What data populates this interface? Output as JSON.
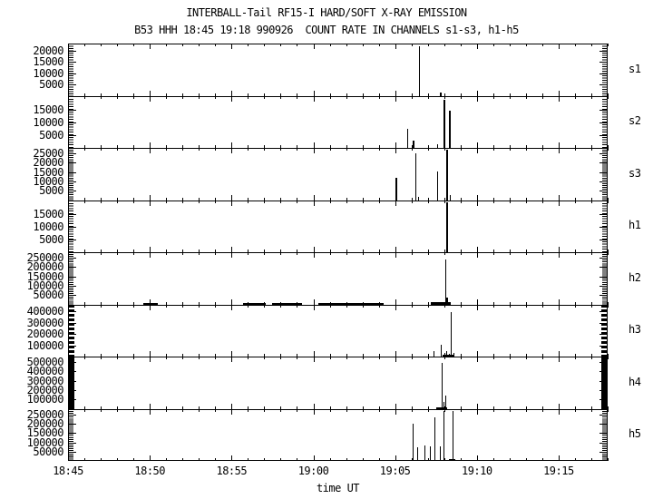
{
  "chart_data": {
    "type": "line",
    "subtype": "multi-panel-count-rate-spikes",
    "title": "INTERBALL-Tail RF15-I HARD/SOFT X-RAY EMISSION",
    "subtitle": "B53 HHH 18:45 19:18 990926  COUNT RATE IN CHANNELS s1-s3, h1-h5",
    "xlabel": "time UT",
    "grid": "off",
    "x_axis": {
      "unit": "minutes after 18:45 UT",
      "range": [
        0,
        33
      ],
      "start_label": "18:45",
      "end_label": "19:18",
      "minor_tick_every": 1,
      "major_ticks": [
        {
          "t": 0,
          "label": "18:45"
        },
        {
          "t": 5,
          "label": "18:50"
        },
        {
          "t": 10,
          "label": "18:55"
        },
        {
          "t": 15,
          "label": "19:00"
        },
        {
          "t": 20,
          "label": "19:05"
        },
        {
          "t": 25,
          "label": "19:10"
        },
        {
          "t": 30,
          "label": "19:15"
        }
      ]
    },
    "panels": [
      {
        "id": "s1",
        "label": "s1",
        "ymax": 23000,
        "y_minor_step": 1000,
        "yticks": [
          5000,
          10000,
          15000,
          20000
        ],
        "spikes": [
          {
            "t": 21.46,
            "v": 22000,
            "w": 1
          },
          {
            "t": 22.8,
            "v": 1300,
            "w": 2
          }
        ],
        "baseline_segments": []
      },
      {
        "id": "s2",
        "label": "s2",
        "ymax": 20500,
        "y_minor_step": 1000,
        "yticks": [
          5000,
          10000,
          15000
        ],
        "spikes": [
          {
            "t": 20.76,
            "v": 7400,
            "w": 1
          },
          {
            "t": 21.11,
            "v": 3000,
            "w": 2
          },
          {
            "t": 22.55,
            "v": 1500,
            "w": 1
          },
          {
            "t": 23.0,
            "v": 19000,
            "w": 2
          },
          {
            "t": 23.35,
            "v": 14600,
            "w": 2
          }
        ],
        "baseline_segments": []
      },
      {
        "id": "s3",
        "label": "s3",
        "ymax": 28000,
        "y_minor_step": 1000,
        "yticks": [
          5000,
          10000,
          15000,
          20000,
          25000
        ],
        "spikes": [
          {
            "t": 20.08,
            "v": 11800,
            "w": 2
          },
          {
            "t": 21.22,
            "v": 25000,
            "w": 1
          },
          {
            "t": 21.39,
            "v": 1500,
            "w": 1
          },
          {
            "t": 22.55,
            "v": 15400,
            "w": 1
          },
          {
            "t": 23.2,
            "v": 27000,
            "w": 2
          },
          {
            "t": 23.35,
            "v": 2500,
            "w": 1
          }
        ],
        "baseline_segments": []
      },
      {
        "id": "h1",
        "label": "h1",
        "ymax": 20500,
        "y_minor_step": 1000,
        "yticks": [
          5000,
          10000,
          15000
        ],
        "spikes": [
          {
            "t": 23.18,
            "v": 19700,
            "w": 2
          }
        ],
        "baseline_segments": []
      },
      {
        "id": "h2",
        "label": "h2",
        "ymax": 280000,
        "y_minor_step": 10000,
        "yticks": [
          50000,
          100000,
          150000,
          200000,
          250000
        ],
        "spikes": [
          {
            "t": 23.05,
            "v": 243000,
            "w": 1
          },
          {
            "t": 23.17,
            "v": 39000,
            "w": 2
          }
        ],
        "baseline_segments": [
          {
            "t0": 4.6,
            "t1": 5.5,
            "v": 8000
          },
          {
            "t0": 10.7,
            "t1": 12.1,
            "v": 8000
          },
          {
            "t0": 12.5,
            "t1": 14.3,
            "v": 8000
          },
          {
            "t0": 15.3,
            "t1": 19.3,
            "v": 8000
          },
          {
            "t0": 22.2,
            "t1": 23.4,
            "v": 12000
          }
        ]
      },
      {
        "id": "h3",
        "label": "h3",
        "ymax": 460000,
        "y_minor_step": 10000,
        "yticks": [
          100000,
          200000,
          300000,
          400000
        ],
        "spikes": [
          {
            "t": 22.34,
            "v": 46000,
            "w": 1
          },
          {
            "t": 22.78,
            "v": 101000,
            "w": 1
          },
          {
            "t": 23.0,
            "v": 30000,
            "w": 1
          },
          {
            "t": 23.15,
            "v": 45000,
            "w": 1
          },
          {
            "t": 23.29,
            "v": 25000,
            "w": 1
          },
          {
            "t": 23.39,
            "v": 393000,
            "w": 1
          },
          {
            "t": 23.55,
            "v": 35000,
            "w": 1
          }
        ],
        "baseline_segments": [
          {
            "t0": 22.9,
            "t1": 23.6,
            "v": 12000
          }
        ]
      },
      {
        "id": "h4",
        "label": "h4",
        "ymax": 560000,
        "y_minor_step": 10000,
        "yticks": [
          100000,
          200000,
          300000,
          400000,
          500000
        ],
        "spikes": [
          {
            "t": 22.55,
            "v": 15000,
            "w": 1
          },
          {
            "t": 22.83,
            "v": 489000,
            "w": 1
          },
          {
            "t": 22.96,
            "v": 78000,
            "w": 1
          },
          {
            "t": 23.09,
            "v": 137000,
            "w": 1
          }
        ],
        "baseline_segments": [
          {
            "t0": 22.5,
            "t1": 23.2,
            "v": 12000
          }
        ]
      },
      {
        "id": "h5",
        "label": "h5",
        "ymax": 280000,
        "y_minor_step": 10000,
        "yticks": [
          50000,
          100000,
          150000,
          200000,
          250000
        ],
        "spikes": [
          {
            "t": 21.1,
            "v": 202000,
            "w": 1
          },
          {
            "t": 21.34,
            "v": 75000,
            "w": 1
          },
          {
            "t": 21.78,
            "v": 84000,
            "w": 1
          },
          {
            "t": 22.1,
            "v": 80000,
            "w": 1
          },
          {
            "t": 22.43,
            "v": 234000,
            "w": 1
          },
          {
            "t": 22.74,
            "v": 80000,
            "w": 1
          },
          {
            "t": 22.98,
            "v": 268000,
            "w": 1
          },
          {
            "t": 23.5,
            "v": 267000,
            "w": 1
          }
        ],
        "baseline_segments": [
          {
            "t0": 23.3,
            "t1": 23.7,
            "v": 8000
          }
        ]
      }
    ]
  }
}
